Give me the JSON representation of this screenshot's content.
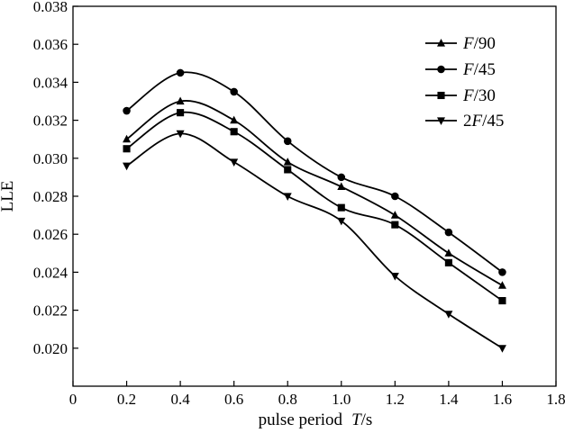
{
  "chart_data": {
    "type": "line",
    "xlabel_prefix": "pulse period",
    "xlabel_var": "T",
    "xlabel_unit": "/s",
    "ylabel": "LLE",
    "xlim": [
      0,
      1.8
    ],
    "ylim": [
      0.018,
      0.038
    ],
    "xticks": [
      "0",
      "0.2",
      "0.4",
      "0.6",
      "0.8",
      "1.0",
      "1.2",
      "1.4",
      "1.6",
      "1.8"
    ],
    "yticks": [
      "0.020",
      "0.022",
      "0.024",
      "0.026",
      "0.028",
      "0.030",
      "0.032",
      "0.034",
      "0.036",
      "0.038"
    ],
    "x": [
      0.2,
      0.4,
      0.6,
      0.8,
      1.0,
      1.2,
      1.4,
      1.6
    ],
    "legend_position": "top-right",
    "series": [
      {
        "name": "F/90",
        "prefix": "",
        "var": "F",
        "suffix": "/90",
        "marker": "triangle-up",
        "values": [
          0.031,
          0.033,
          0.032,
          0.0298,
          0.0285,
          0.027,
          0.025,
          0.0233
        ]
      },
      {
        "name": "F/45",
        "prefix": "",
        "var": "F",
        "suffix": "/45",
        "marker": "circle",
        "values": [
          0.0325,
          0.0345,
          0.0335,
          0.0309,
          0.029,
          0.028,
          0.0261,
          0.024
        ]
      },
      {
        "name": "F/30",
        "prefix": "",
        "var": "F",
        "suffix": "/30",
        "marker": "square",
        "values": [
          0.0305,
          0.0324,
          0.0314,
          0.0294,
          0.0274,
          0.0265,
          0.0245,
          0.0225
        ]
      },
      {
        "name": "2F/45",
        "prefix": "2",
        "var": "F",
        "suffix": "/45",
        "marker": "triangle-down",
        "values": [
          0.0296,
          0.0313,
          0.0298,
          0.028,
          0.0267,
          0.0238,
          0.0218,
          0.02
        ]
      }
    ]
  }
}
